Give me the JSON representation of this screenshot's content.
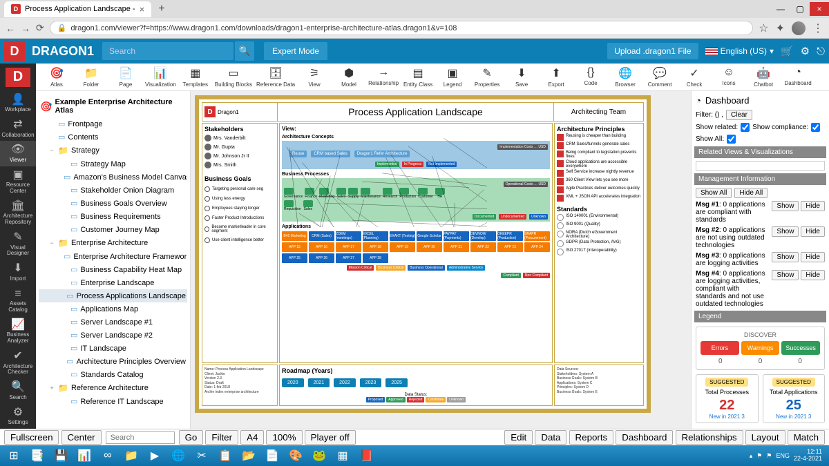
{
  "browser": {
    "tab_title": "Process Application Landscape - ",
    "url": "dragon1.com/viewer?f=https://www.dragon1.com/downloads/dragon1-enterprise-architecture-atlas.dragon1&v=108"
  },
  "header": {
    "brand": "DRAGON1",
    "search_placeholder": "Search",
    "expert_mode": "Expert Mode",
    "upload": "Upload .dragon1 File",
    "language": "English (US)"
  },
  "toolbar": [
    {
      "icon": "🎯",
      "label": "Atlas"
    },
    {
      "icon": "📁",
      "label": "Folder"
    },
    {
      "icon": "📄",
      "label": "Page"
    },
    {
      "icon": "📊",
      "label": "Visualization"
    },
    {
      "icon": "▦",
      "label": "Templates"
    },
    {
      "icon": "▭",
      "label": "Building Blocks"
    },
    {
      "icon": "🗄",
      "label": "Reference Data"
    },
    {
      "icon": "⚞",
      "label": "View"
    },
    {
      "icon": "⬢",
      "label": "Model"
    },
    {
      "icon": "→",
      "label": "Relationship"
    },
    {
      "icon": "▤",
      "label": "Entity Class"
    },
    {
      "icon": "▣",
      "label": "Legend"
    },
    {
      "icon": "✎",
      "label": "Properties"
    },
    {
      "icon": "⬇",
      "label": "Save"
    },
    {
      "icon": "⬆",
      "label": "Export"
    },
    {
      "icon": "{}",
      "label": "Code"
    },
    {
      "icon": "🌐",
      "label": "Browser"
    },
    {
      "icon": "💬",
      "label": "Comment"
    },
    {
      "icon": "✓",
      "label": "Check"
    },
    {
      "icon": "☺",
      "label": "Icons"
    },
    {
      "icon": "🤖",
      "label": "Chatbot"
    },
    {
      "icon": "◔",
      "label": "Dashboard"
    }
  ],
  "rail": [
    {
      "icon": "👤",
      "label": "Workplace"
    },
    {
      "icon": "⇄",
      "label": "Collaboration"
    },
    {
      "icon": "👁",
      "label": "Viewer",
      "active": true
    },
    {
      "icon": "▣",
      "label": "Resource Center"
    },
    {
      "icon": "🏛",
      "label": "Architecture Repository"
    },
    {
      "icon": "✎",
      "label": "Visual Designer"
    },
    {
      "icon": "⬇",
      "label": "Import"
    },
    {
      "icon": "≡",
      "label": "Assets Catalog"
    },
    {
      "icon": "📈",
      "label": "Business Analyzer"
    },
    {
      "icon": "✔",
      "label": "Architecture Checker"
    },
    {
      "icon": "🔍",
      "label": "Search"
    },
    {
      "icon": "⚙",
      "label": "Settings"
    }
  ],
  "tree": {
    "root": "Example Enterprise Architecture Atlas",
    "items": [
      {
        "l": 1,
        "t": "page",
        "label": "Frontpage"
      },
      {
        "l": 1,
        "t": "page",
        "label": "Contents"
      },
      {
        "l": 1,
        "t": "folder",
        "label": "Strategy",
        "exp": "−"
      },
      {
        "l": 2,
        "t": "page",
        "label": "Strategy Map"
      },
      {
        "l": 2,
        "t": "page",
        "label": "Amazon's Business Model Canvas"
      },
      {
        "l": 2,
        "t": "page",
        "label": "Stakeholder Onion Diagram"
      },
      {
        "l": 2,
        "t": "page",
        "label": "Business Goals Overview"
      },
      {
        "l": 2,
        "t": "page",
        "label": "Business Requirements"
      },
      {
        "l": 2,
        "t": "page",
        "label": "Customer Journey Map"
      },
      {
        "l": 1,
        "t": "folder",
        "label": "Enterprise Architecture",
        "exp": "−"
      },
      {
        "l": 2,
        "t": "page",
        "label": "Enterprise Architecture Framework"
      },
      {
        "l": 2,
        "t": "page",
        "label": "Business Capability Heat Map"
      },
      {
        "l": 2,
        "t": "page",
        "label": "Enterprise Landscape"
      },
      {
        "l": 2,
        "t": "page",
        "label": "Process Applications Landscape",
        "sel": true
      },
      {
        "l": 2,
        "t": "page",
        "label": "Applications Map"
      },
      {
        "l": 2,
        "t": "page",
        "label": "Server Landscape #1"
      },
      {
        "l": 2,
        "t": "page",
        "label": "Server Landscape #2"
      },
      {
        "l": 2,
        "t": "page",
        "label": "IT Landscape"
      },
      {
        "l": 2,
        "t": "page",
        "label": "Architecture Principles Overview"
      },
      {
        "l": 2,
        "t": "page",
        "label": "Standards Catalog"
      },
      {
        "l": 1,
        "t": "folder",
        "label": "Reference Architecture",
        "exp": "+"
      },
      {
        "l": 2,
        "t": "page",
        "label": "Reference IT Landscape"
      }
    ]
  },
  "atlas": {
    "logo_text": "Dragon1",
    "title": "Process Application Landscape",
    "team": "Architecting Team",
    "stakeholders_hdr": "Stakeholders",
    "stakeholders": [
      "Mrs. Vanderbilt",
      "Mr. Gupta",
      "Mr. Johnson Jr II",
      "Mrs. Smith"
    ],
    "goals_hdr": "Business Goals",
    "goals": [
      "Targeting personal care seg",
      "Using less energy",
      "Employees staying longer",
      "Faster Product Introductions",
      "Become marketleader in core segment",
      "Use client intelligence better"
    ],
    "view_hdr": "View:",
    "view_sub": "Architecture Concepts",
    "concepts": [
      "Reuse",
      "CRM based Sales",
      "Dragon1 Refer Architecture"
    ],
    "impl_hdr": "Implementation Costs … USD",
    "impl_tags": [
      {
        "t": "Implemented",
        "c": "#2e9b5a"
      },
      {
        "t": "In Progress",
        "c": "#d32f2f"
      },
      {
        "t": "Not Implemented",
        "c": "#1565c0"
      }
    ],
    "proc_hdr": "Business Processes",
    "processes": [
      "Governance",
      "Finance",
      "Marketing",
      "Sales",
      "Supply",
      "Maintenance",
      "Research",
      "Production",
      "Customer",
      "HR"
    ],
    "proc2": [
      "Requisition",
      "Sales"
    ],
    "op_hdr": "Operational Costs … USD",
    "doc_tags": [
      {
        "t": "Documented",
        "c": "#2e9b5a"
      },
      {
        "t": "Undocumented",
        "c": "#d32f2f"
      },
      {
        "t": "Unknown",
        "c": "#1565c0"
      }
    ],
    "apps_hdr": "Applications",
    "app_colors": [
      "#f57c00",
      "#1565c0",
      "#1565c0",
      "#1565c0",
      "#1565c0",
      "#1565c0",
      "#1565c0",
      "#1565c0",
      "#1565c0",
      "#f57c00",
      "#f57c00",
      "#f57c00",
      "#f57c00",
      "#f57c00",
      "#f57c00",
      "#f57c00",
      "#f57c00",
      "#f57c00",
      "#f57c00",
      "#f57c00",
      "#1565c0",
      "#1565c0",
      "#1565c0",
      "#1565c0"
    ],
    "app_labels": [
      "B42 Marketing",
      "CRM (Sales)",
      "ZOEM (meetings)",
      "EXCEL (Planning)",
      "EXAKT (Testing)",
      "Google Scholar",
      "PAYPAY (Payments)",
      "DEVNOW (Develop)",
      "OKEEPR (Production)",
      "SRAPR (Procurement)",
      "APP 15",
      "APP 16",
      "APP 17",
      "APP 18",
      "APP 19",
      "APP 20",
      "APP 21",
      "APP 22",
      "APP 23",
      "APP 24",
      "APP 25",
      "APP 26",
      "APP 27",
      "APP 28"
    ],
    "crit_tags": [
      {
        "t": "Mission Critical",
        "c": "#d32f2f"
      },
      {
        "t": "Business Critical",
        "c": "#f9a825"
      },
      {
        "t": "Business Operational",
        "c": "#1565c0"
      },
      {
        "t": "Administrative Service",
        "c": "#0288d1"
      }
    ],
    "comp_tags": [
      {
        "t": "Compliant",
        "c": "#2e9b5a"
      },
      {
        "t": "Non Compliant",
        "c": "#d32f2f"
      }
    ],
    "principles_hdr": "Architecture Principles",
    "principles": [
      "Reusing is cheaper than building",
      "CRM Sales/funnels generate sales",
      "Being compliant to legislation prevents fines",
      "Cloud applications are accessible everywhere",
      "Self Service increase nightly revenue",
      "360 Client View lets you see more",
      "Agile Practices deliver outcomes quickly",
      "XML + JSON API accelerates integration"
    ],
    "standards_hdr": "Standards",
    "standards": [
      "ISO 140001 (Environmental)",
      "ISO 9001 (Quality)",
      "NORA (Dutch eGovernment Architecture)",
      "GDPR (Data Protection, AVG)",
      "ISO 27017 (Interoperability)"
    ],
    "meta": "Name: Process Application Landscape\nClient: Jackie\nVersion 2.3\nStatus: Draft\nDate: 1 feb 2018\nArchie index enterprise architecture",
    "roadmap_hdr": "Roadmap (Years)",
    "years": [
      "2020",
      "2021",
      "2022",
      "2023",
      "2025"
    ],
    "data_status_hdr": "Data Status:",
    "data_status": [
      {
        "t": "Proposed",
        "c": "#1565c0"
      },
      {
        "t": "Approved",
        "c": "#2e9b5a"
      },
      {
        "t": "Rejected",
        "c": "#d32f2f"
      },
      {
        "t": "Candidate",
        "c": "#f9a825"
      },
      {
        "t": "Unknown",
        "c": "#9e9e9e"
      }
    ],
    "data_sources": "Data Sources:\nStakeholders: System A\nBusiness Goals: System B\nApplications: System C\nPrinciples: System D\nBusiness Goals: System E"
  },
  "dashboard": {
    "title": "Dashboard",
    "filter_label": "Filter: () ,",
    "clear": "Clear",
    "show_related": "Show related:",
    "show_compliance": "Show compliance:",
    "show_all": "Show All:",
    "sec1": "Related Views & Visualizations",
    "sec2": "Management Information",
    "show_all_btn": "Show All",
    "hide_all_btn": "Hide All",
    "messages": [
      {
        "id": "Msg #1",
        "txt": "0 applications are compliant with standards"
      },
      {
        "id": "Msg #2",
        "txt": "0 applications are not using outdated technologies"
      },
      {
        "id": "Msg #3",
        "txt": "0 applications are logging activities"
      },
      {
        "id": "Msg #4",
        "txt": "0 applications are logging activities, compliant with standards and not use outdated technologies"
      }
    ],
    "show_btn": "Show",
    "hide_btn": "Hide",
    "sec3": "Legend",
    "discover": "DISCOVER",
    "errors": "Errors",
    "warnings": "Warnings",
    "successes": "Successes",
    "err_c": "#e53935",
    "warn_c": "#fb8c00",
    "succ_c": "#2e9b5a",
    "counts": [
      "0",
      "0",
      "0"
    ],
    "suggested": "SUGGESTED",
    "sug1_label": "Total Processes",
    "sug1_num": "22",
    "sug1_color": "#d32f2f",
    "sug2_label": "Total Applications",
    "sug2_num": "25",
    "sug2_color": "#1565c0",
    "sug_foot": "New in 2021 3"
  },
  "actionbar": {
    "left": [
      "Fullscreen",
      "Center"
    ],
    "search_ph": "Search",
    "mid": [
      "Go",
      "Filter",
      "A4",
      "100%",
      "Player off"
    ],
    "right": [
      "Edit",
      "Data",
      "Reports",
      "Dashboard",
      "Relationships",
      "Layout",
      "Match"
    ]
  },
  "taskbar": {
    "icons": [
      "⊞",
      "📑",
      "💾",
      "📊",
      "∞",
      "📁",
      "▶",
      "🌐",
      "✂",
      "📋",
      "📂",
      "📄",
      "🎨",
      "🐸",
      "▦",
      "📕"
    ],
    "lang": "ENG",
    "time": "12:11",
    "date": "22-4-2021"
  }
}
